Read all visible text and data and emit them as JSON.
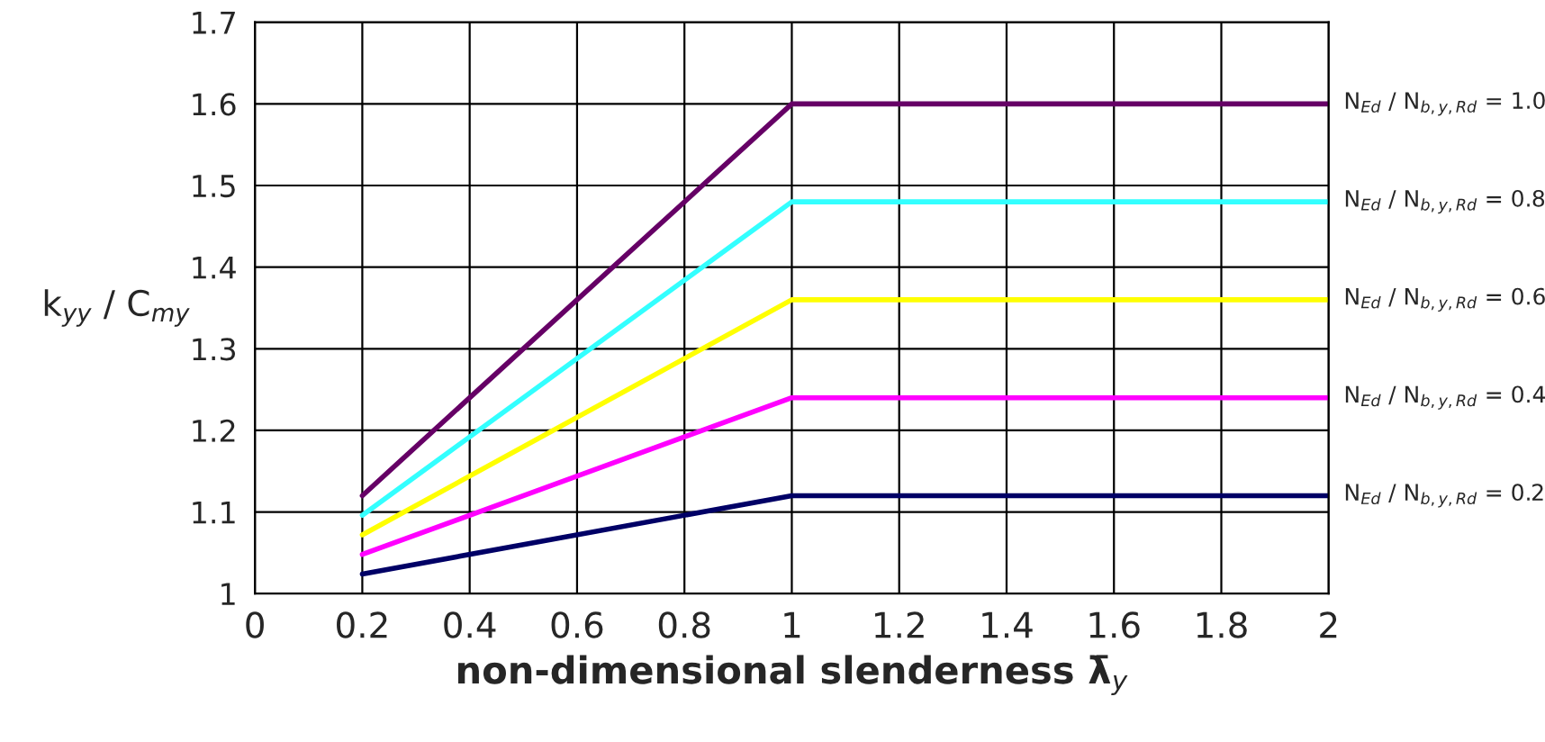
{
  "chart_data": {
    "type": "line",
    "xlabel": "non-dimensional slenderness λ̄$_{y}$",
    "ylabel": "k$_{yy}$ / C$_{my}$",
    "xlim": [
      0,
      2
    ],
    "xticks": [
      0,
      0.2,
      0.4,
      0.6,
      0.8,
      1,
      1.2,
      1.4,
      1.6,
      1.8,
      2
    ],
    "ylim": [
      1,
      1.7
    ],
    "yticks": [
      1,
      1.1,
      1.2,
      1.3,
      1.4,
      1.5,
      1.6,
      1.7
    ],
    "x": [
      0.2,
      1,
      2
    ],
    "grid": true,
    "legend": false,
    "marker": "none",
    "line_style": "solid",
    "series": [
      {
        "name": "N$_{Ed}$ / N$_{b,y,Rd}$ = 1.0",
        "color": "#660066",
        "values": [
          1.12,
          1.6,
          1.6
        ]
      },
      {
        "name": "N$_{Ed}$ / N$_{b,y,Rd}$ = 0.8",
        "color": "#33ffff",
        "values": [
          1.096,
          1.48,
          1.48
        ]
      },
      {
        "name": "N$_{Ed}$ / N$_{b,y,Rd}$ = 0.6",
        "color": "#ffff00",
        "values": [
          1.072,
          1.36,
          1.36
        ]
      },
      {
        "name": "N$_{Ed}$ / N$_{b,y,Rd}$ = 0.4",
        "color": "#ff00ff",
        "values": [
          1.048,
          1.24,
          1.24
        ]
      },
      {
        "name": "N$_{Ed}$ / N$_{b,y,Rd}$ = 0.2",
        "color": "#000066",
        "values": [
          1.024,
          1.12,
          1.12
        ]
      }
    ]
  }
}
